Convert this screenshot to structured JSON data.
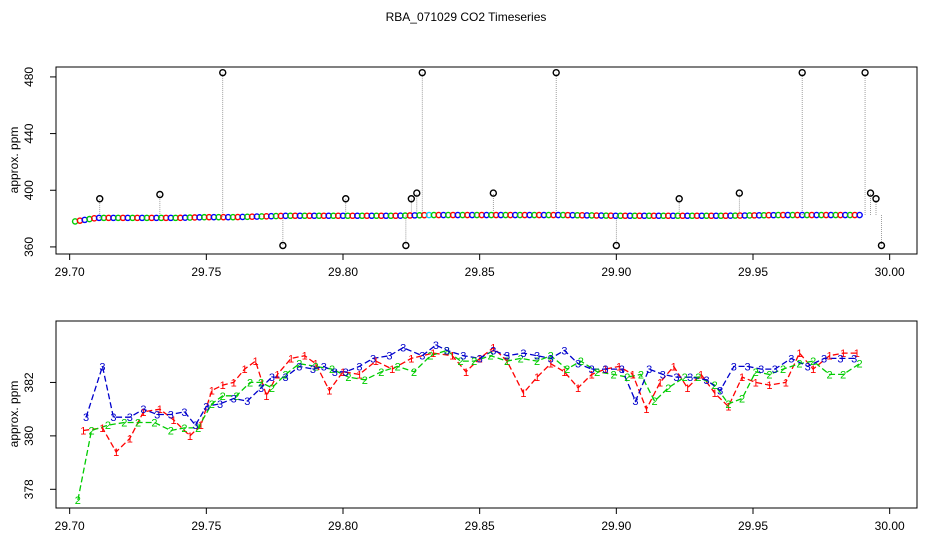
{
  "chart_data": [
    {
      "type": "scatter",
      "title": "RBA_071029  CO2 Timeseries",
      "ylabel": "approx. ppm",
      "xlim": [
        29.695,
        30.01
      ],
      "ylim": [
        355,
        487
      ],
      "x_ticks": [
        "29.70",
        "29.75",
        "29.80",
        "29.85",
        "29.90",
        "29.95",
        "30.00"
      ],
      "y_ticks": [
        "360",
        "400",
        "440",
        "480"
      ],
      "baseline": [
        {
          "x": 29.702,
          "y": 378
        },
        {
          "x": 29.71,
          "y": 380.5
        },
        {
          "x": 29.72,
          "y": 380.5
        },
        {
          "x": 29.74,
          "y": 380.5
        },
        {
          "x": 29.75,
          "y": 381
        },
        {
          "x": 29.76,
          "y": 381
        },
        {
          "x": 29.78,
          "y": 382
        },
        {
          "x": 29.8,
          "y": 382
        },
        {
          "x": 29.82,
          "y": 382
        },
        {
          "x": 29.832,
          "y": 382.5
        },
        {
          "x": 29.85,
          "y": 382.5
        },
        {
          "x": 29.88,
          "y": 382.5
        },
        {
          "x": 29.9,
          "y": 382
        },
        {
          "x": 29.92,
          "y": 382
        },
        {
          "x": 29.94,
          "y": 382
        },
        {
          "x": 29.96,
          "y": 382.5
        },
        {
          "x": 29.98,
          "y": 382.5
        },
        {
          "x": 29.99,
          "y": 382.5
        }
      ],
      "spikes": [
        {
          "x": 29.711,
          "y": 394
        },
        {
          "x": 29.733,
          "y": 397
        },
        {
          "x": 29.756,
          "y": 483
        },
        {
          "x": 29.778,
          "y": 361
        },
        {
          "x": 29.801,
          "y": 394
        },
        {
          "x": 29.823,
          "y": 361
        },
        {
          "x": 29.825,
          "y": 394
        },
        {
          "x": 29.827,
          "y": 398
        },
        {
          "x": 29.829,
          "y": 483
        },
        {
          "x": 29.855,
          "y": 398
        },
        {
          "x": 29.878,
          "y": 483
        },
        {
          "x": 29.9,
          "y": 361
        },
        {
          "x": 29.923,
          "y": 394
        },
        {
          "x": 29.945,
          "y": 398
        },
        {
          "x": 29.968,
          "y": 483
        },
        {
          "x": 29.991,
          "y": 483
        },
        {
          "x": 29.993,
          "y": 398
        },
        {
          "x": 29.995,
          "y": 394
        },
        {
          "x": 29.997,
          "y": 361
        }
      ],
      "colors": {
        "series1": "#ff0000",
        "series2": "#00cc00",
        "series3": "#0000ff",
        "spike": "#000000",
        "cyan": "#00ccff"
      }
    },
    {
      "type": "line",
      "ylabel": "approx. ppm",
      "xlim": [
        29.695,
        30.01
      ],
      "ylim": [
        377.3,
        384.3
      ],
      "x_ticks": [
        "29.70",
        "29.75",
        "29.80",
        "29.85",
        "29.90",
        "29.95",
        "30.00"
      ],
      "y_ticks": [
        "378",
        "380",
        "382"
      ],
      "series": [
        {
          "label": "1",
          "color": "#ff0000",
          "x": [
            29.705,
            29.712,
            29.717,
            29.722,
            29.727,
            29.733,
            29.738,
            29.744,
            29.748,
            29.752,
            29.756,
            29.76,
            29.764,
            29.768,
            29.772,
            29.776,
            29.781,
            29.786,
            29.79,
            29.795,
            29.8,
            29.806,
            29.812,
            29.818,
            29.825,
            29.833,
            29.84,
            29.845,
            29.85,
            29.855,
            29.86,
            29.866,
            29.871,
            29.876,
            29.881,
            29.886,
            29.891,
            29.896,
            29.901,
            29.906,
            29.911,
            29.916,
            29.921,
            29.926,
            29.931,
            29.936,
            29.941,
            29.946,
            29.951,
            29.956,
            29.962,
            29.967,
            29.972,
            29.978,
            29.983,
            29.988
          ],
          "y": [
            380.2,
            380.3,
            379.4,
            379.9,
            380.9,
            381.0,
            380.6,
            380.0,
            380.4,
            381.7,
            381.9,
            382.0,
            382.5,
            382.8,
            381.5,
            382.3,
            382.9,
            383.0,
            382.7,
            381.7,
            382.4,
            382.3,
            382.8,
            382.5,
            382.9,
            383.1,
            383.0,
            382.4,
            382.9,
            383.3,
            382.8,
            381.6,
            382.2,
            382.7,
            382.4,
            381.8,
            382.3,
            382.5,
            382.6,
            382.3,
            381.0,
            382.0,
            382.6,
            381.8,
            382.3,
            381.6,
            381.1,
            382.2,
            382.0,
            381.9,
            382.0,
            383.1,
            382.5,
            383.0,
            383.1,
            383.1
          ]
        },
        {
          "label": "2",
          "color": "#00cc00",
          "x": [
            29.703,
            29.708,
            29.714,
            29.72,
            29.725,
            29.731,
            29.737,
            29.742,
            29.747,
            29.752,
            29.756,
            29.761,
            29.766,
            29.77,
            29.774,
            29.779,
            29.784,
            29.79,
            29.796,
            29.802,
            29.808,
            29.814,
            29.82,
            29.826,
            29.832,
            29.838,
            29.843,
            29.848,
            29.854,
            29.86,
            29.865,
            29.871,
            29.876,
            29.882,
            29.887,
            29.893,
            29.899,
            29.904,
            29.909,
            29.914,
            29.919,
            29.925,
            29.93,
            29.936,
            29.941,
            29.946,
            29.951,
            29.956,
            29.961,
            29.967,
            29.972,
            29.978,
            29.983,
            29.989
          ],
          "y": [
            377.6,
            380.2,
            380.4,
            380.5,
            380.5,
            380.5,
            380.2,
            380.3,
            380.3,
            381.2,
            381.5,
            381.5,
            382.0,
            382.0,
            381.8,
            382.3,
            382.7,
            382.6,
            382.5,
            382.2,
            382.1,
            382.4,
            382.6,
            382.4,
            383.0,
            383.2,
            382.8,
            382.8,
            383.0,
            382.8,
            382.9,
            382.8,
            383.0,
            382.5,
            382.8,
            382.4,
            382.3,
            382.2,
            382.3,
            381.3,
            381.8,
            382.2,
            382.2,
            381.9,
            381.2,
            381.4,
            382.4,
            382.3,
            382.5,
            382.7,
            382.8,
            382.3,
            382.3,
            382.7
          ]
        },
        {
          "label": "3",
          "color": "#0000cc",
          "x": [
            29.706,
            29.712,
            29.716,
            29.722,
            29.727,
            29.732,
            29.737,
            29.742,
            29.746,
            29.75,
            29.755,
            29.76,
            29.765,
            29.77,
            29.774,
            29.779,
            29.784,
            29.789,
            29.793,
            29.797,
            29.801,
            29.806,
            29.811,
            29.817,
            29.822,
            29.829,
            29.834,
            29.838,
            29.844,
            29.85,
            29.855,
            29.86,
            29.866,
            29.871,
            29.876,
            29.881,
            29.886,
            29.891,
            29.896,
            29.902,
            29.907,
            29.912,
            29.917,
            29.922,
            29.927,
            29.933,
            29.938,
            29.943,
            29.948,
            29.953,
            29.958,
            29.964,
            29.97,
            29.976,
            29.982,
            29.987
          ],
          "y": [
            380.7,
            382.6,
            380.7,
            380.7,
            381.0,
            380.8,
            380.8,
            380.9,
            380.4,
            381.1,
            381.2,
            381.4,
            381.3,
            381.8,
            382.2,
            382.2,
            382.6,
            382.5,
            382.6,
            382.4,
            382.4,
            382.6,
            382.9,
            383.0,
            383.3,
            383.0,
            383.4,
            383.2,
            383.0,
            382.9,
            383.2,
            383.0,
            383.1,
            383.0,
            382.9,
            383.2,
            382.7,
            382.5,
            382.5,
            382.5,
            381.3,
            382.5,
            382.3,
            382.2,
            382.2,
            382.1,
            381.7,
            382.6,
            382.6,
            382.5,
            382.5,
            382.9,
            382.6,
            382.9,
            382.9,
            382.9
          ]
        }
      ]
    }
  ]
}
